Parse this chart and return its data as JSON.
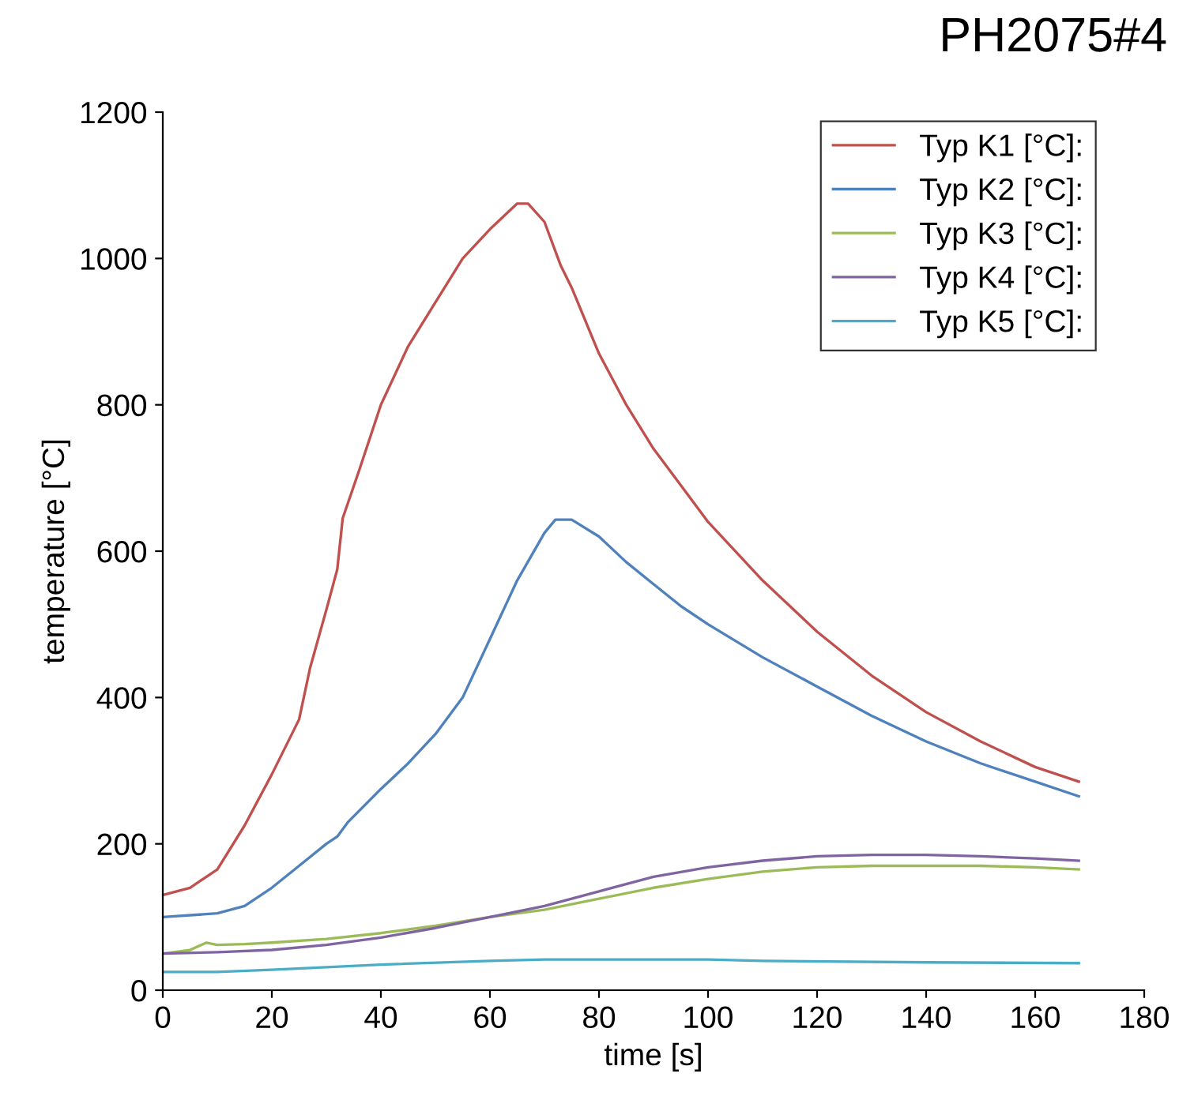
{
  "chart_data": {
    "type": "line",
    "title": "PH2075#4",
    "xlabel": "time [s]",
    "ylabel": "temperature [°C]",
    "xlim": [
      0,
      180
    ],
    "xticks": [
      0,
      20,
      40,
      60,
      80,
      100,
      120,
      140,
      160,
      180
    ],
    "ylim": [
      0,
      1200
    ],
    "yticks": [
      0,
      200,
      400,
      600,
      800,
      1000,
      1200
    ],
    "grid": false,
    "legend": "top right",
    "marker": "none",
    "line_style": "solid",
    "series": [
      {
        "name": "Typ K1 [°C]:",
        "color": "#c0504d",
        "x": [
          0,
          5,
          10,
          15,
          20,
          25,
          27,
          30,
          32,
          33,
          36,
          40,
          45,
          50,
          55,
          60,
          65,
          67,
          70,
          73,
          75,
          80,
          85,
          90,
          95,
          100,
          110,
          120,
          130,
          140,
          150,
          160,
          168
        ],
        "values": [
          130,
          140,
          165,
          225,
          295,
          370,
          440,
          520,
          575,
          645,
          710,
          800,
          880,
          940,
          1000,
          1040,
          1075,
          1075,
          1050,
          990,
          960,
          870,
          800,
          740,
          690,
          640,
          560,
          490,
          430,
          380,
          340,
          305,
          285
        ]
      },
      {
        "name": "Typ K2 [°C]:",
        "color": "#4f81bd",
        "x": [
          0,
          10,
          15,
          20,
          25,
          30,
          32,
          34,
          40,
          45,
          50,
          55,
          60,
          65,
          70,
          72,
          75,
          80,
          85,
          90,
          95,
          100,
          110,
          120,
          130,
          140,
          150,
          160,
          168
        ],
        "values": [
          100,
          105,
          115,
          140,
          170,
          200,
          210,
          230,
          275,
          310,
          350,
          400,
          480,
          560,
          625,
          643,
          643,
          620,
          585,
          555,
          525,
          500,
          455,
          415,
          375,
          340,
          310,
          285,
          265
        ]
      },
      {
        "name": "Typ K3 [°C]:",
        "color": "#9bbb59",
        "x": [
          0,
          5,
          8,
          10,
          15,
          20,
          30,
          40,
          50,
          60,
          70,
          80,
          90,
          100,
          110,
          120,
          130,
          140,
          150,
          160,
          168
        ],
        "values": [
          50,
          55,
          65,
          62,
          63,
          65,
          70,
          78,
          88,
          100,
          110,
          125,
          140,
          152,
          162,
          168,
          170,
          170,
          170,
          168,
          165
        ]
      },
      {
        "name": "Typ K4 [°C]:",
        "color": "#8064a2",
        "x": [
          0,
          10,
          20,
          30,
          40,
          50,
          60,
          70,
          80,
          90,
          100,
          110,
          120,
          130,
          140,
          150,
          160,
          168
        ],
        "values": [
          50,
          52,
          55,
          62,
          72,
          85,
          100,
          115,
          135,
          155,
          168,
          177,
          183,
          185,
          185,
          183,
          180,
          177
        ]
      },
      {
        "name": "Typ K5 [°C]:",
        "color": "#4bacc6",
        "x": [
          0,
          10,
          20,
          40,
          60,
          70,
          100,
          110,
          140,
          168
        ],
        "values": [
          25,
          25,
          28,
          35,
          40,
          42,
          42,
          40,
          38,
          37
        ]
      }
    ]
  }
}
